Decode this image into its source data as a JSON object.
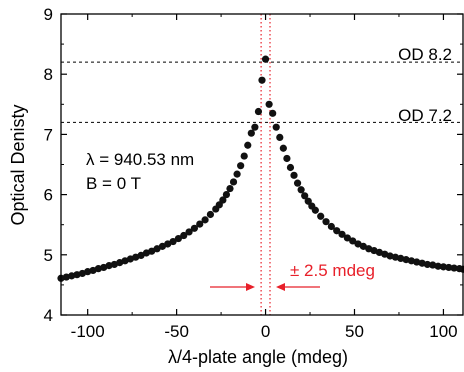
{
  "chart_data": {
    "type": "scatter",
    "xlabel": "λ/4-plate angle (mdeg)",
    "ylabel": "Optical Denisty",
    "xlim": [
      -115,
      111
    ],
    "ylim": [
      4,
      9
    ],
    "x_ticks": [
      -100,
      -50,
      0,
      50,
      100
    ],
    "x_tick_labels": [
      "-100",
      "-50",
      "0",
      "50",
      "100"
    ],
    "y_ticks": [
      4,
      5,
      6,
      7,
      8,
      9
    ],
    "y_tick_labels": [
      "4",
      "5",
      "6",
      "7",
      "8",
      "9"
    ],
    "grid": false,
    "series": [
      {
        "color": "#111111",
        "marker": "circle",
        "x": [
          -115,
          -112,
          -109,
          -106,
          -103,
          -100,
          -97,
          -94,
          -91,
          -88,
          -85,
          -82,
          -79,
          -76,
          -73,
          -70,
          -67,
          -64,
          -61,
          -58,
          -55,
          -52,
          -49,
          -46,
          -43,
          -40,
          -37,
          -34,
          -31,
          -28,
          -26,
          -24,
          -22,
          -20,
          -18,
          -16,
          -14,
          -12,
          -10,
          -8,
          -6,
          -4,
          -2,
          0,
          2,
          4,
          6,
          8,
          10,
          12,
          14,
          16,
          18,
          20,
          22,
          24,
          26,
          28,
          31,
          34,
          37,
          40,
          43,
          46,
          49,
          52,
          55,
          58,
          61,
          64,
          67,
          70,
          73,
          76,
          79,
          82,
          85,
          88,
          91,
          94,
          97,
          100,
          103,
          106,
          109,
          111
        ],
        "y": [
          4.61,
          4.63,
          4.65,
          4.67,
          4.69,
          4.72,
          4.74,
          4.77,
          4.79,
          4.82,
          4.84,
          4.87,
          4.9,
          4.93,
          4.96,
          4.99,
          5.03,
          5.06,
          5.1,
          5.14,
          5.18,
          5.22,
          5.27,
          5.32,
          5.38,
          5.44,
          5.51,
          5.58,
          5.67,
          5.76,
          5.83,
          5.91,
          6.0,
          6.1,
          6.21,
          6.34,
          6.48,
          6.64,
          6.82,
          7.02,
          7.12,
          7.38,
          7.9,
          8.25,
          7.5,
          7.35,
          7.12,
          6.95,
          6.77,
          6.6,
          6.45,
          6.32,
          6.19,
          6.08,
          5.98,
          5.89,
          5.81,
          5.74,
          5.64,
          5.55,
          5.47,
          5.4,
          5.34,
          5.28,
          5.23,
          5.18,
          5.14,
          5.1,
          5.07,
          5.04,
          5.01,
          4.98,
          4.96,
          4.94,
          4.92,
          4.9,
          4.88,
          4.86,
          4.84,
          4.83,
          4.81,
          4.8,
          4.79,
          4.78,
          4.77,
          4.76
        ]
      }
    ],
    "hlines": [
      {
        "y": 8.2,
        "label": "OD 8.2",
        "style": "dashed",
        "color": "#000000"
      },
      {
        "y": 7.2,
        "label": "OD 7.2",
        "style": "dashed",
        "color": "#000000"
      }
    ],
    "vlines": [
      {
        "x": -2.5,
        "style": "dotted",
        "color": "#e8202a"
      },
      {
        "x": 2.5,
        "style": "dotted",
        "color": "#e8202a"
      }
    ],
    "annotations": {
      "wavelength": "λ = 940.53 nm",
      "field": "B = 0 T",
      "width_label": "± 2.5 mdeg",
      "width_color": "#e8202a"
    }
  }
}
